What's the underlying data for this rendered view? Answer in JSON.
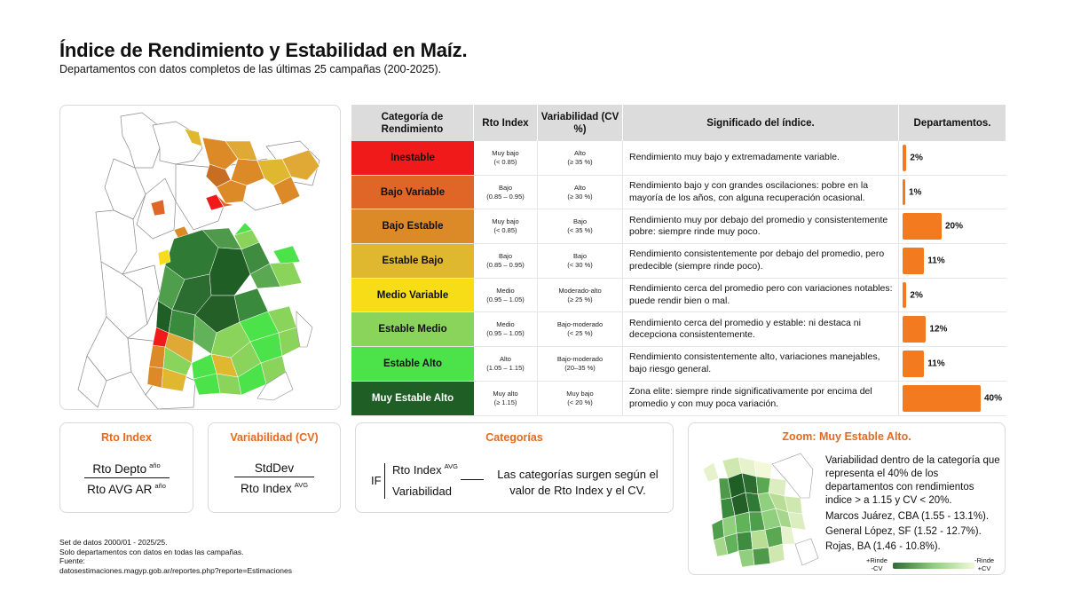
{
  "header": {
    "title": "Índice de Rendimiento y Estabilidad en Maíz.",
    "subtitle": "Departamentos con datos completos de las últimas 25 campañas (200-2025)."
  },
  "table": {
    "headers": {
      "categoria": "Categoría de Rendimiento",
      "rto": "Rto Index",
      "variabilidad": "Variabilidad (CV %)",
      "significado": "Significado del índice.",
      "departamentos": "Departamentos."
    }
  },
  "chart_data": {
    "type": "bar",
    "title": "Departamentos.",
    "categories": [
      "Inestable",
      "Bajo Variable",
      "Bajo Estable",
      "Estable Bajo",
      "Medio Variable",
      "Estable Medio",
      "Estable Alto",
      "Muy Estable Alto"
    ],
    "values": [
      2,
      1,
      20,
      11,
      2,
      12,
      11,
      40
    ],
    "value_labels": [
      "2%",
      "1%",
      "20%",
      "11%",
      "2%",
      "12%",
      "11%",
      "40%"
    ],
    "unit": "%",
    "xlim": [
      0,
      40
    ],
    "bar_color": "#f47a20",
    "category_colors": [
      "#f01a1a",
      "#df6627",
      "#dc8a28",
      "#e0b830",
      "#f7dd18",
      "#8ad45c",
      "#4be24a",
      "#1f5e25"
    ],
    "rto": [
      {
        "label": "Muy bajo",
        "range": "(< 0.85)"
      },
      {
        "label": "Bajo",
        "range": "(0.85 – 0.95)"
      },
      {
        "label": "Muy bajo",
        "range": "(< 0.85)"
      },
      {
        "label": "Bajo",
        "range": "(0.85 – 0.95)"
      },
      {
        "label": "Medio",
        "range": "(0.95 – 1.05)"
      },
      {
        "label": "Medio",
        "range": "(0.95 – 1.05)"
      },
      {
        "label": "Alto",
        "range": "(1.05 – 1.15)"
      },
      {
        "label": "Muy alto",
        "range": "(≥ 1.15)"
      }
    ],
    "variabilidad": [
      {
        "label": "Alto",
        "range": "(≥ 35 %)"
      },
      {
        "label": "Alto",
        "range": "(≥ 30 %)"
      },
      {
        "label": "Bajo",
        "range": "(< 35 %)"
      },
      {
        "label": "Bajo",
        "range": "(< 30 %)"
      },
      {
        "label": "Moderado-alto",
        "range": "(≥ 25 %)"
      },
      {
        "label": "Bajo-moderado",
        "range": "(< 25 %)"
      },
      {
        "label": "Bajo-moderado",
        "range": "(20–35 %)"
      },
      {
        "label": "Muy bajo",
        "range": "(< 20 %)"
      }
    ],
    "descriptions": [
      "Rendimiento muy bajo y extremadamente variable.",
      "Rendimiento bajo y con grandes oscilaciones: pobre en la mayoría de los años, con alguna recuperación ocasional.",
      "Rendimiento muy por debajo del promedio y consistentemente pobre: siempre rinde muy poco.",
      "Rendimiento consistentemente por debajo del promedio, pero predecible (siempre rinde poco).",
      "Rendimiento cerca del promedio pero con variaciones notables: puede rendir bien o mal.",
      "Rendimiento cerca del promedio y estable: ni destaca ni decepciona consistentemente.",
      "Rendimiento consistentemente alto, variaciones manejables, bajo riesgo general.",
      "Zona elite: siempre rinde significativamente por encima del promedio y con muy poca variación."
    ]
  },
  "formulas": {
    "rto": {
      "title": "Rto Index",
      "numerator": "Rto Depto",
      "num_sup": "año",
      "denominator": "Rto AVG AR",
      "den_sup": "año"
    },
    "var": {
      "title": "Variabilidad (CV)",
      "numerator": "StdDev",
      "denominator": "Rto Index",
      "den_sup": "AVG"
    },
    "cat": {
      "title": "Categorías",
      "if": "IF",
      "n1": "Rto Index",
      "n1_sup": "AVG",
      "n2": "Variabilidad",
      "explanation": "Las categorías surgen según el valor de Rto Index y el CV."
    }
  },
  "zoom": {
    "title": "Zoom: Muy Estable Alto.",
    "text": "Variabilidad dentro de la categoría que representa el 40% de los departamentos con rendimientos indice > a 1.15 y CV < 20%.",
    "examples": [
      "Marcos Juárez, CBA (1.55 - 13.1%).",
      "General López, SF (1.52 - 12.7%).",
      "Rojas, BA (1.46 - 10.8%)."
    ],
    "legend_left_top": "+Rinde",
    "legend_left_bottom": "-CV",
    "legend_right_top": "-Rinde",
    "legend_right_bottom": "+CV"
  },
  "notes": {
    "line1": "Set de datos 2000/01 - 2025/25.",
    "line2": "Solo departamentos con datos en todas las campañas.",
    "line3": "Fuente:",
    "line4": "datosestimaciones.magyp.gob.ar/reportes.php?reporte=Estimaciones"
  }
}
